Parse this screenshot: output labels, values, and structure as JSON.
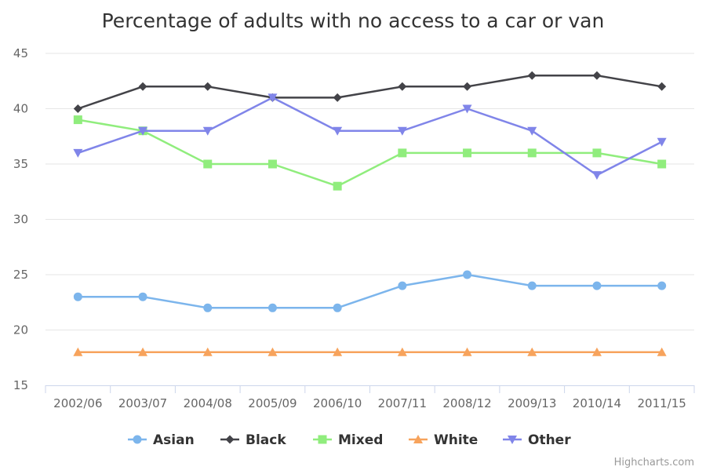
{
  "chart_data": {
    "type": "line",
    "title": "Percentage of adults with no access to a car or van",
    "xlabel": "",
    "ylabel": "",
    "categories": [
      "2002/06",
      "2003/07",
      "2004/08",
      "2005/09",
      "2006/10",
      "2007/11",
      "2008/12",
      "2009/13",
      "2010/14",
      "2011/15"
    ],
    "ylim": [
      15,
      45
    ],
    "yticks": [
      15,
      20,
      25,
      30,
      35,
      40,
      45
    ],
    "grid": true,
    "legend_position": "bottom",
    "series": [
      {
        "name": "Asian",
        "color": "#7cb5ec",
        "marker": "circle",
        "values": [
          23,
          23,
          22,
          22,
          22,
          24,
          25,
          24,
          24,
          24
        ]
      },
      {
        "name": "Black",
        "color": "#434348",
        "marker": "diamond",
        "values": [
          40,
          42,
          42,
          41,
          41,
          42,
          42,
          43,
          43,
          42
        ]
      },
      {
        "name": "Mixed",
        "color": "#90ed7d",
        "marker": "square",
        "values": [
          39,
          38,
          35,
          35,
          33,
          36,
          36,
          36,
          36,
          35
        ]
      },
      {
        "name": "White",
        "color": "#f7a35c",
        "marker": "triangle",
        "values": [
          18,
          18,
          18,
          18,
          18,
          18,
          18,
          18,
          18,
          18
        ]
      },
      {
        "name": "Other",
        "color": "#8085e9",
        "marker": "triangle-down",
        "values": [
          36,
          38,
          38,
          41,
          38,
          38,
          40,
          38,
          34,
          37
        ]
      }
    ]
  },
  "credits": "Highcharts.com"
}
